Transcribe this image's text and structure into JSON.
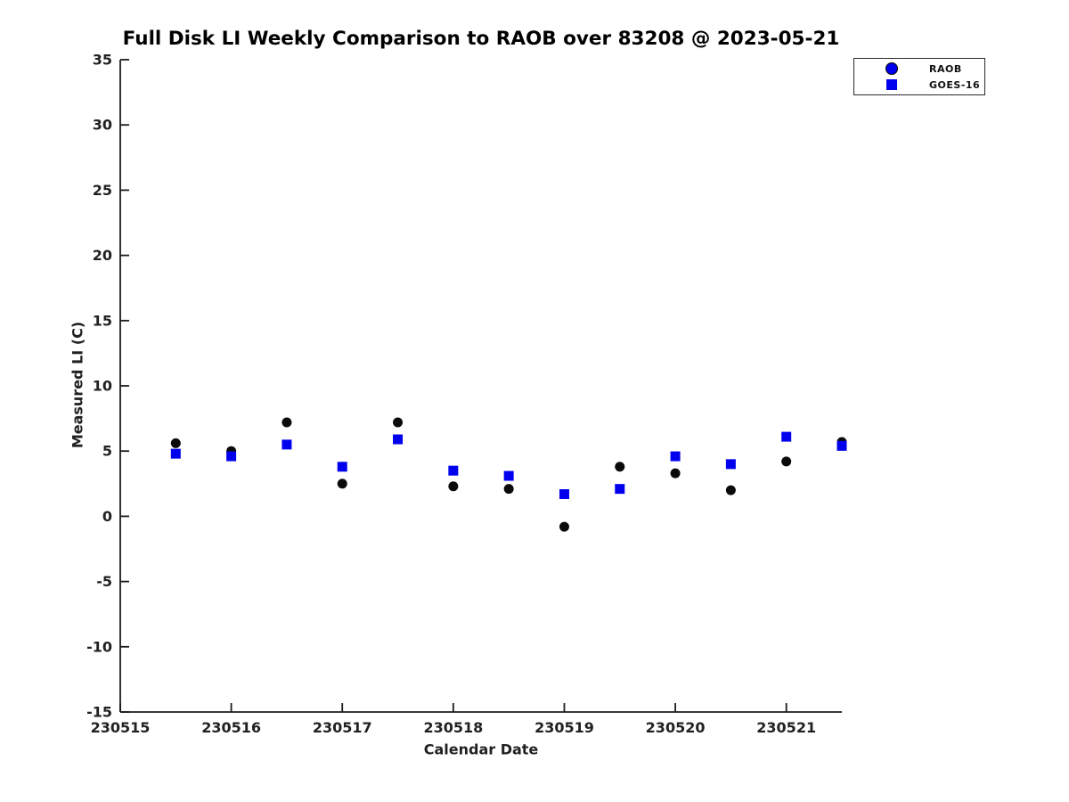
{
  "figure": {
    "background_color": "#ffffff",
    "text_color": "#212121",
    "accent_blue": "#0000ee"
  },
  "chart_data": {
    "type": "scatter",
    "title": "Full Disk LI Weekly Comparison to RAOB over 83208 @ 2023-05-21",
    "xlabel": "Calendar Date",
    "ylabel": "Measured LI (C)",
    "xlim": [
      230515,
      230521.5
    ],
    "ylim": [
      -15,
      35
    ],
    "xticks": [
      230515,
      230516,
      230517,
      230518,
      230519,
      230520,
      230521
    ],
    "xtick_labels": [
      "230515",
      "230516",
      "230517",
      "230518",
      "230519",
      "230520",
      "230521"
    ],
    "yticks": [
      35,
      30,
      25,
      20,
      15,
      10,
      5,
      0,
      -5,
      -10,
      -15
    ],
    "ytick_labels": [
      "35",
      "30",
      "25",
      "20",
      "15",
      "10",
      "5",
      "0",
      "-5",
      "-10",
      "-15"
    ],
    "grid": false,
    "legend_position": "top-right",
    "x": [
      230515.5,
      230516,
      230516.5,
      230517,
      230517.5,
      230518,
      230518.5,
      230519,
      230519.5,
      230520,
      230520.5,
      230521,
      230521.5
    ],
    "series": [
      {
        "name": "RAOB",
        "marker": "circle",
        "plot_color": "#0a0a0a",
        "legend_color": "#0000ee",
        "values": [
          5.6,
          5.0,
          7.2,
          2.5,
          7.2,
          2.3,
          2.1,
          -0.8,
          3.8,
          3.3,
          2.0,
          4.2,
          5.7
        ]
      },
      {
        "name": "GOES-16",
        "marker": "square",
        "plot_color": "#0000ee",
        "legend_color": "#0000ee",
        "values": [
          4.8,
          4.6,
          5.5,
          3.8,
          5.9,
          3.5,
          3.1,
          1.7,
          2.1,
          4.6,
          4.0,
          6.1,
          5.4
        ]
      }
    ]
  }
}
